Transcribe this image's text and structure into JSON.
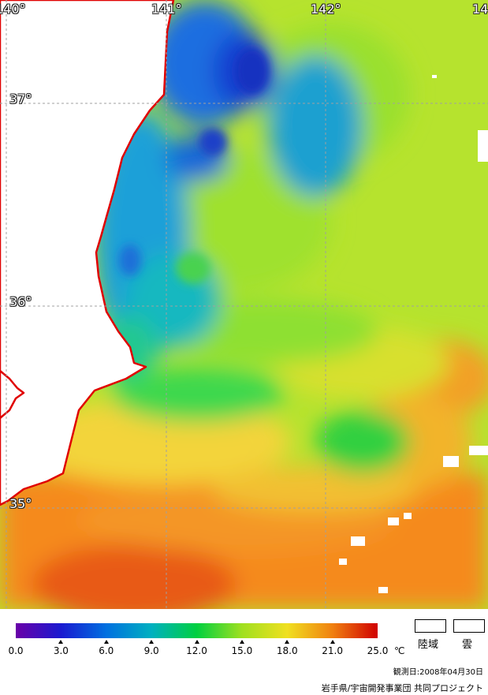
{
  "map": {
    "lon_labels": [
      "140°",
      "141°",
      "142°",
      "14"
    ],
    "lat_labels": [
      "37°",
      "36°",
      "35°"
    ]
  },
  "legend": {
    "ticks": [
      "0.0",
      "3.0",
      "6.0",
      "9.0",
      "12.0",
      "15.0",
      "18.0",
      "21.0",
      "25.0"
    ],
    "unit": "℃",
    "colors": [
      "#6a00a8",
      "#1a1ad0",
      "#0070e0",
      "#00b0c0",
      "#00d040",
      "#a0e020",
      "#f0e020",
      "#f08010",
      "#d00000"
    ],
    "land_label": "陸域",
    "cloud_label": "雲"
  },
  "footer": {
    "observation_date": "観測日:2008年04月30日",
    "credit": "岩手県/宇宙開発事業団  共同プロジェクト"
  },
  "colors": {
    "coastline": "#e00000",
    "land": "#ffffff",
    "grid": "#a0a0a0"
  }
}
